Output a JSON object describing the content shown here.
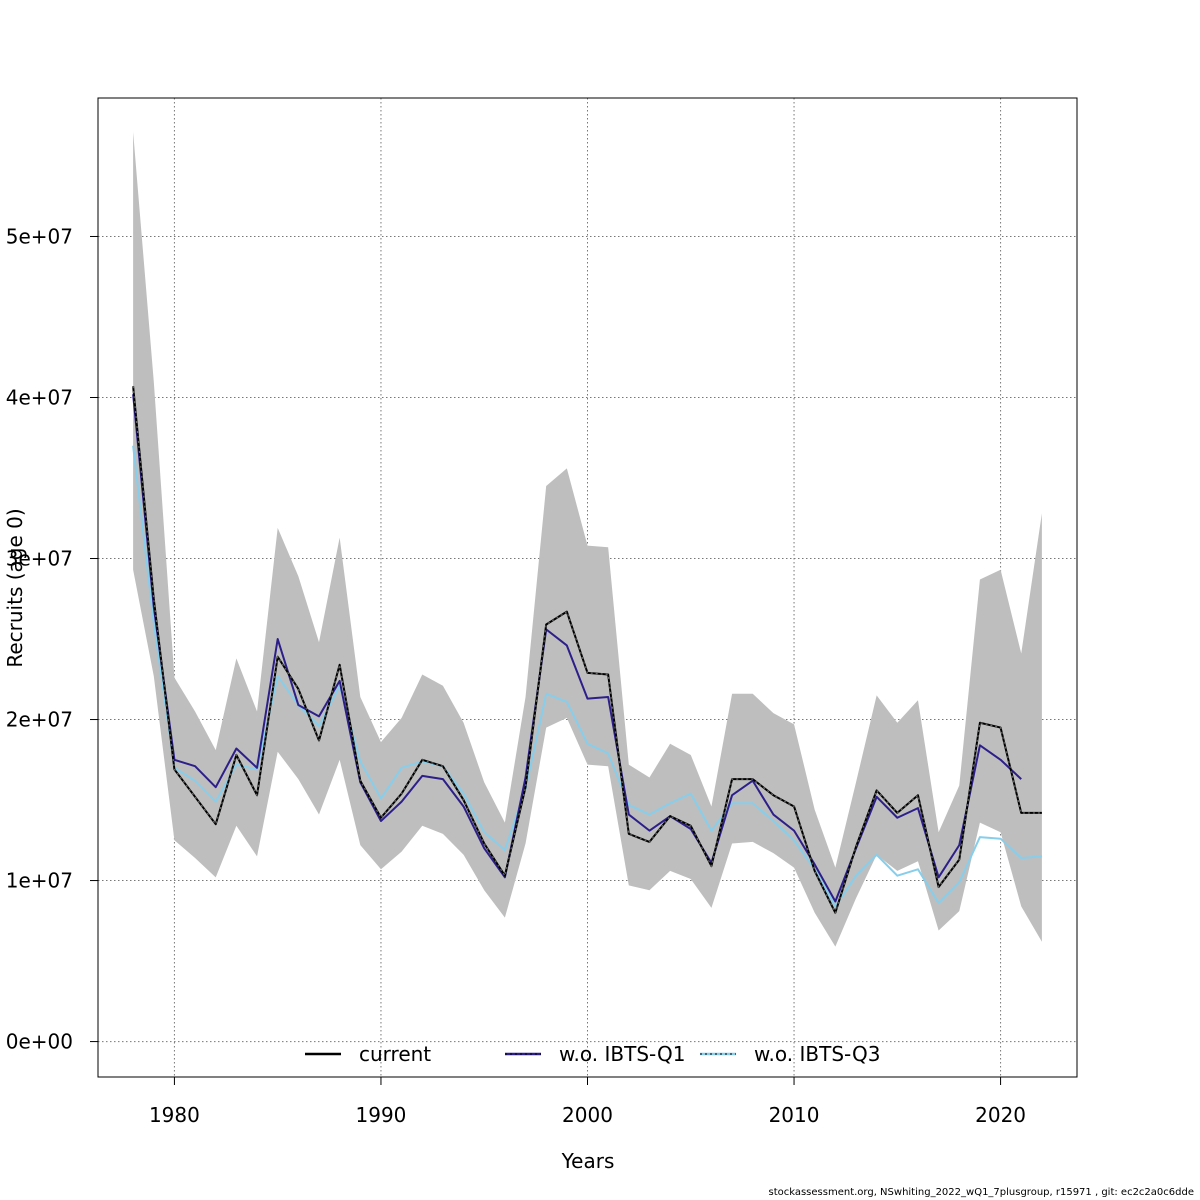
{
  "chart_data": {
    "type": "line",
    "title": "",
    "xlabel": "Years",
    "ylabel": "Recruits (age 0)",
    "xlim": [
      1976.3,
      2023.7
    ],
    "ylim": [
      -2200000,
      58600000
    ],
    "x_ticks": [
      1980,
      1990,
      2000,
      2010,
      2020
    ],
    "x_tick_labels": [
      "1980",
      "1990",
      "2000",
      "2010",
      "2020"
    ],
    "y_ticks": [
      0,
      10000000,
      20000000,
      30000000,
      40000000,
      50000000
    ],
    "y_tick_labels": [
      "0e+00",
      "1e+07",
      "2e+07",
      "3e+07",
      "4e+07",
      "5e+07"
    ],
    "grid": true,
    "legend_position": "bottom",
    "years": [
      1978,
      1979,
      1980,
      1981,
      1982,
      1983,
      1984,
      1985,
      1986,
      1987,
      1988,
      1989,
      1990,
      1991,
      1992,
      1993,
      1994,
      1995,
      1996,
      1997,
      1998,
      1999,
      2000,
      2001,
      2002,
      2003,
      2004,
      2005,
      2006,
      2007,
      2008,
      2009,
      2010,
      2011,
      2012,
      2013,
      2014,
      2015,
      2016,
      2017,
      2018,
      2019,
      2020,
      2021,
      2022
    ],
    "band": {
      "upper": [
        56500000,
        41000000,
        22600000,
        20500000,
        18100000,
        23800000,
        20500000,
        31900000,
        28900000,
        24800000,
        31300000,
        21400000,
        18600000,
        20100000,
        22800000,
        22100000,
        19800000,
        16100000,
        13600000,
        21400000,
        34500000,
        35600000,
        30800000,
        30700000,
        17200000,
        16400000,
        18500000,
        17800000,
        14600000,
        21600000,
        21600000,
        20400000,
        19700000,
        14400000,
        10800000,
        16100000,
        21500000,
        19800000,
        21200000,
        13000000,
        15900000,
        28700000,
        29300000,
        24100000,
        32800000
      ],
      "lower": [
        29300000,
        22700000,
        12500000,
        11400000,
        10200000,
        13400000,
        11500000,
        18000000,
        16300000,
        14100000,
        17500000,
        12200000,
        10700000,
        11800000,
        13400000,
        12900000,
        11600000,
        9400000,
        7700000,
        12300000,
        19500000,
        20100000,
        17200000,
        17100000,
        9700000,
        9400000,
        10600000,
        10100000,
        8300000,
        12300000,
        12400000,
        11700000,
        10800000,
        8000000,
        5900000,
        8900000,
        11600000,
        10600000,
        11200000,
        6900000,
        8100000,
        13600000,
        13000000,
        8400000,
        6200000
      ]
    },
    "series": [
      {
        "name": "current",
        "color": "#000000",
        "style": "solid",
        "values": [
          40700000,
          27500000,
          16900000,
          15200000,
          13500000,
          17800000,
          15300000,
          23900000,
          21900000,
          18700000,
          23400000,
          16200000,
          13900000,
          15400000,
          17500000,
          17100000,
          15000000,
          12300000,
          10300000,
          15800000,
          25900000,
          26700000,
          22900000,
          22800000,
          12900000,
          12400000,
          14000000,
          13400000,
          10900000,
          16300000,
          16300000,
          15300000,
          14600000,
          10600000,
          8000000,
          12100000,
          15600000,
          14200000,
          15300000,
          9600000,
          11300000,
          19800000,
          19500000,
          14200000,
          14200000
        ]
      },
      {
        "name": "w.o. IBTS-Q1",
        "color": "#2c1f8a",
        "style": "solid",
        "values": [
          40200000,
          27000000,
          17500000,
          17100000,
          15800000,
          18200000,
          17000000,
          25000000,
          20900000,
          20200000,
          22400000,
          16100000,
          13700000,
          14900000,
          16500000,
          16300000,
          14600000,
          12000000,
          10200000,
          16400000,
          25600000,
          24600000,
          21300000,
          21400000,
          14100000,
          13100000,
          14000000,
          13200000,
          11100000,
          15300000,
          16200000,
          14100000,
          13100000,
          11000000,
          8700000,
          12000000,
          15200000,
          13900000,
          14500000,
          10200000,
          12200000,
          18400000,
          17500000,
          16300000
        ]
      },
      {
        "name": "w.o. IBTS-Q3",
        "color": "#87ceeb",
        "style": "solid",
        "values": [
          37000000,
          26000000,
          17000000,
          16200000,
          14900000,
          17200000,
          16900000,
          22700000,
          20900000,
          19600000,
          22100000,
          17400000,
          15100000,
          17000000,
          17400000,
          17100000,
          15400000,
          13000000,
          11900000,
          15700000,
          21600000,
          21100000,
          18500000,
          17900000,
          14700000,
          14100000,
          14800000,
          15400000,
          13100000,
          14800000,
          14800000,
          13700000,
          12500000,
          10700000,
          8400000,
          10300000,
          11600000,
          10300000,
          10700000,
          8600000,
          9900000,
          12700000,
          12600000,
          11400000,
          11500000
        ]
      }
    ]
  },
  "footer_text": "stockassessment.org, NSwhiting_2022_wQ1_7plusgroup, r15971 , git: ec2c2a0c6dde"
}
